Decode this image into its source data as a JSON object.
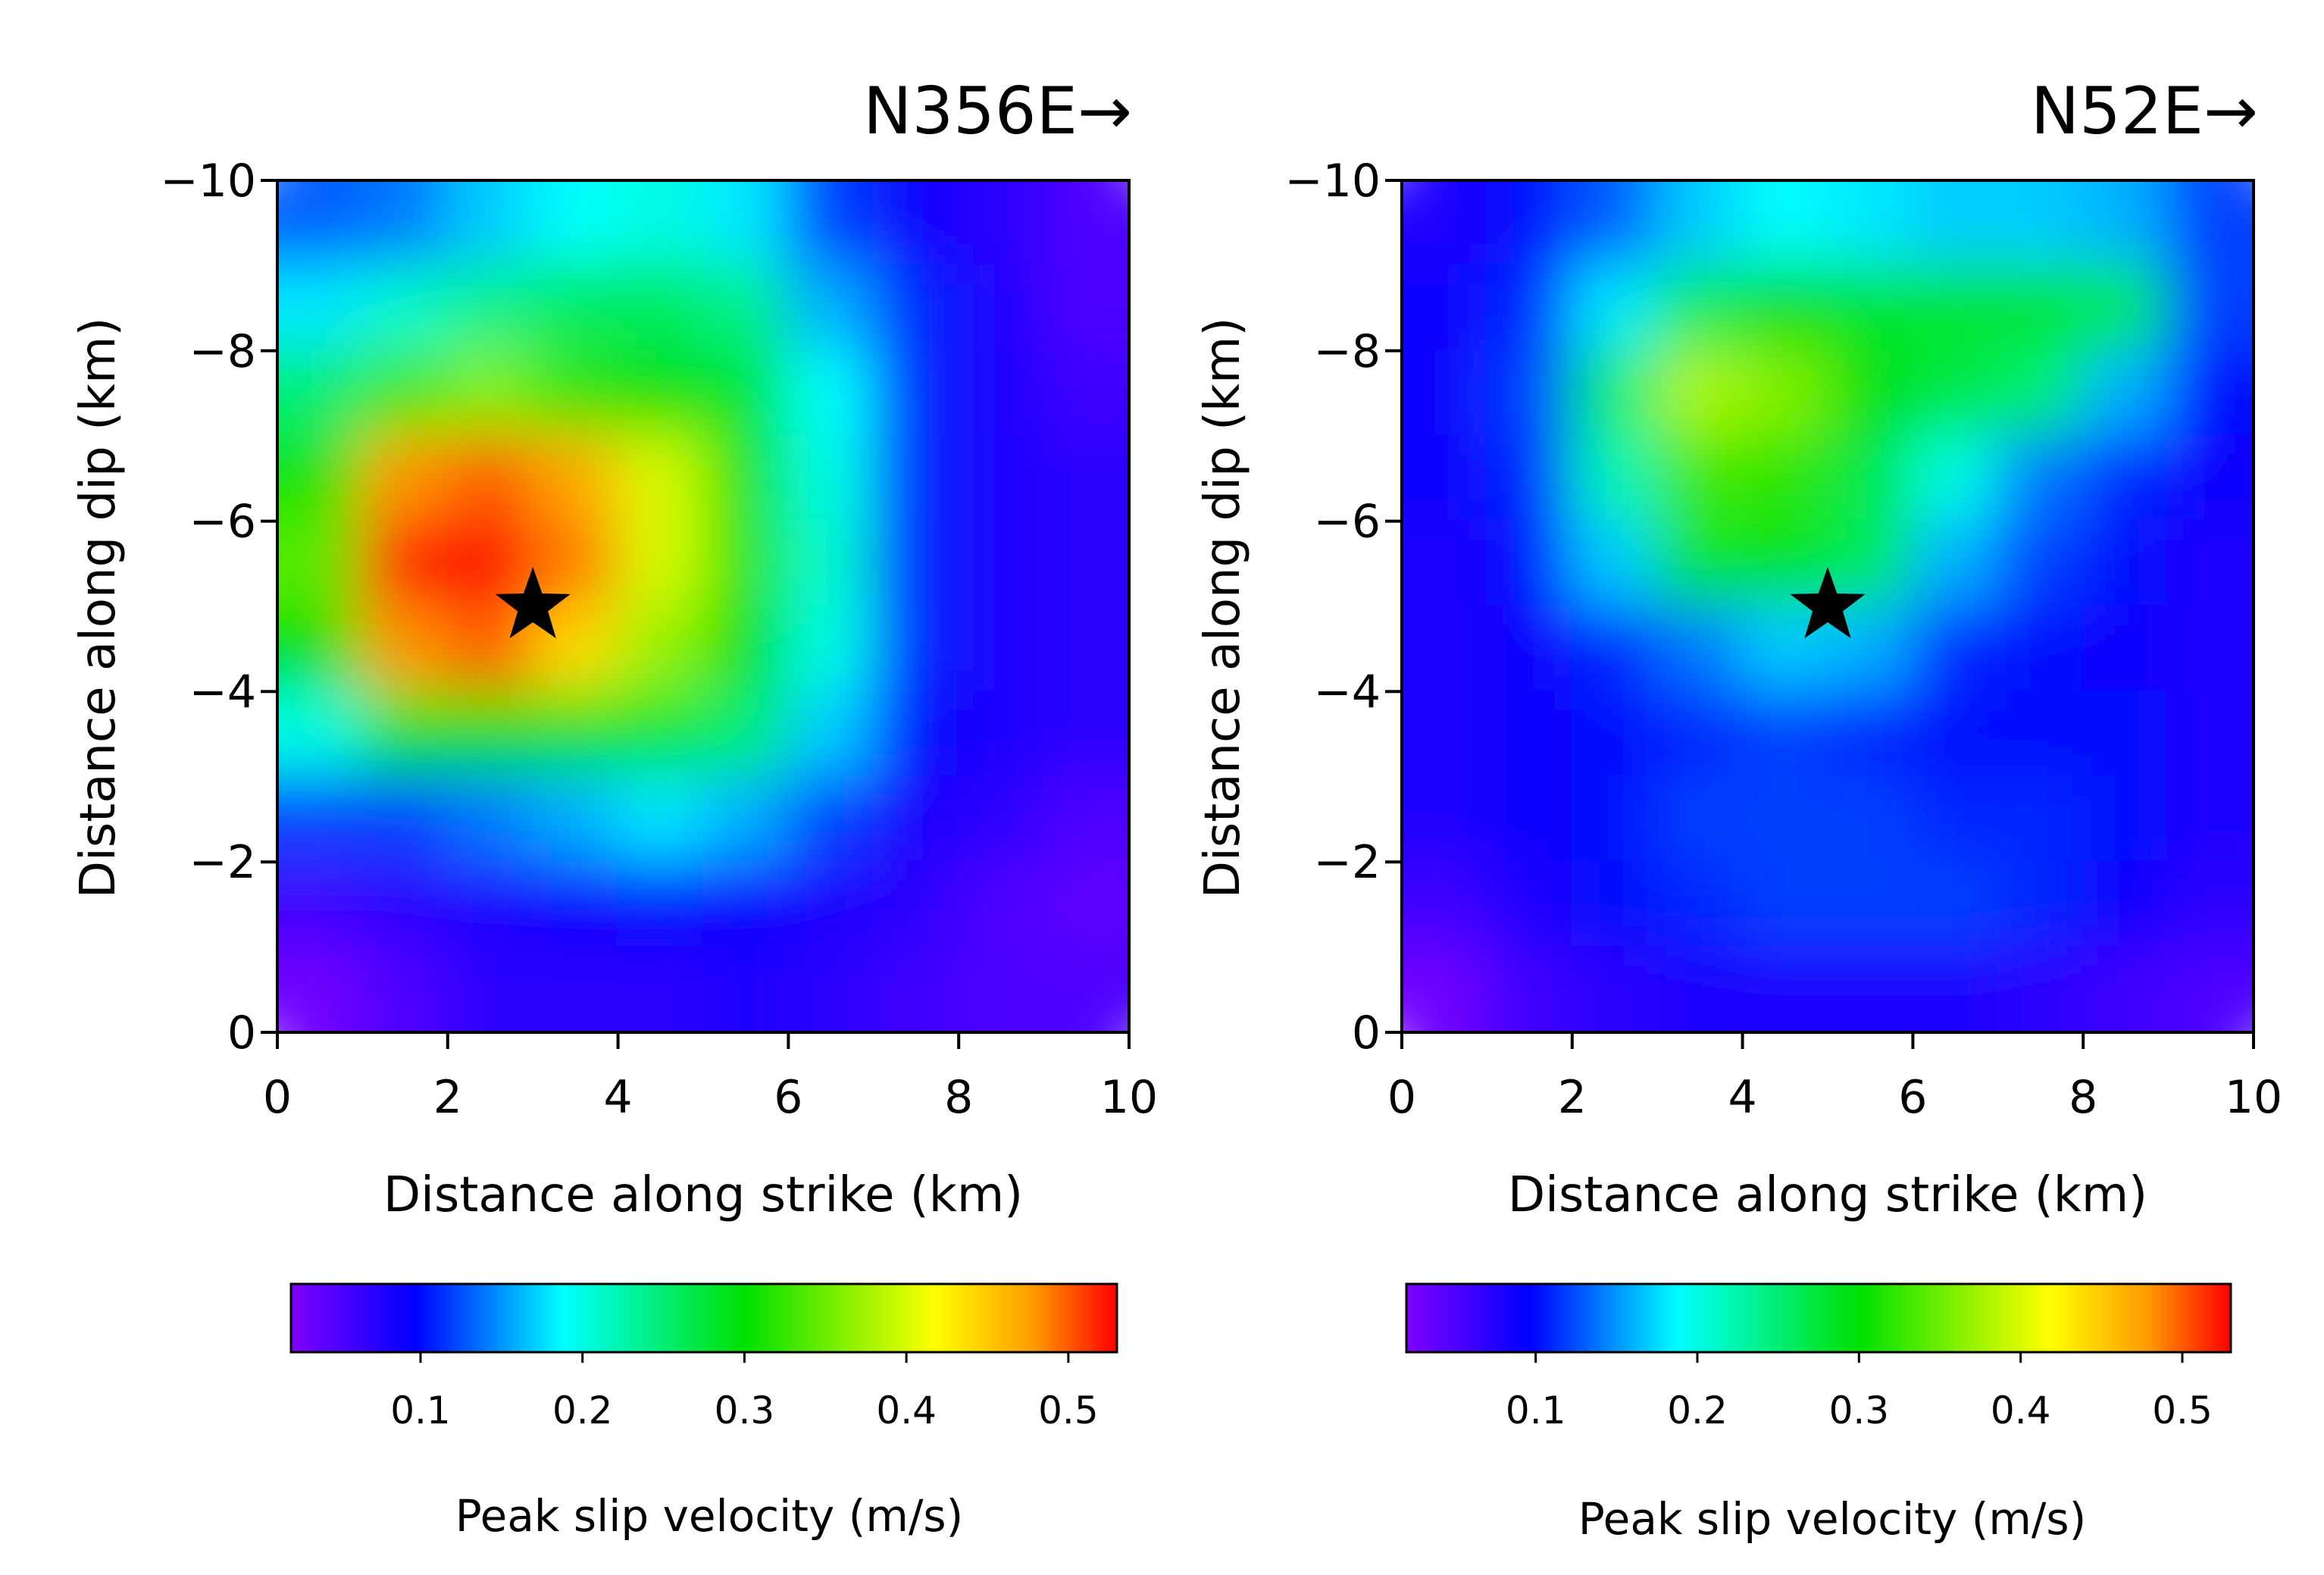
{
  "figure": {
    "panels": [
      {
        "title": "N356E→"
      },
      {
        "title": "N52E→"
      }
    ]
  },
  "chart_data": [
    {
      "type": "heatmap",
      "title": "N356E→",
      "xlabel": "Distance along strike (km)",
      "ylabel": "Distance along dip (km)",
      "xlim": [
        0,
        10
      ],
      "ylim": [
        0,
        -10
      ],
      "x_ticks": [
        "0",
        "2",
        "4",
        "6",
        "8",
        "10"
      ],
      "y_ticks": [
        "−10",
        "−8",
        "−6",
        "−4",
        "−2",
        "0"
      ],
      "x": [
        0.5,
        1.5,
        2.5,
        3.5,
        4.5,
        5.5,
        6.5,
        7.5,
        8.5,
        9.5
      ],
      "y": [
        -9.5,
        -8.5,
        -7.5,
        -6.5,
        -5.5,
        -4.5,
        -3.5,
        -2.5,
        -1.5,
        -0.5
      ],
      "z": [
        [
          0.13,
          0.14,
          0.17,
          0.19,
          0.2,
          0.18,
          0.12,
          0.09,
          0.07,
          0.05
        ],
        [
          0.18,
          0.21,
          0.24,
          0.26,
          0.26,
          0.24,
          0.16,
          0.11,
          0.08,
          0.05
        ],
        [
          0.25,
          0.33,
          0.36,
          0.32,
          0.3,
          0.28,
          0.19,
          0.11,
          0.08,
          0.06
        ],
        [
          0.31,
          0.48,
          0.5,
          0.47,
          0.4,
          0.31,
          0.2,
          0.11,
          0.08,
          0.07
        ],
        [
          0.34,
          0.52,
          0.53,
          0.49,
          0.4,
          0.32,
          0.21,
          0.11,
          0.08,
          0.07
        ],
        [
          0.3,
          0.48,
          0.5,
          0.44,
          0.37,
          0.3,
          0.2,
          0.11,
          0.08,
          0.07
        ],
        [
          0.2,
          0.29,
          0.3,
          0.29,
          0.28,
          0.25,
          0.17,
          0.1,
          0.08,
          0.07
        ],
        [
          0.12,
          0.12,
          0.14,
          0.16,
          0.18,
          0.16,
          0.12,
          0.08,
          0.07,
          0.05
        ],
        [
          0.06,
          0.07,
          0.08,
          0.09,
          0.1,
          0.09,
          0.08,
          0.07,
          0.05,
          0.04
        ],
        [
          0.03,
          0.05,
          0.07,
          0.07,
          0.07,
          0.08,
          0.07,
          0.06,
          0.05,
          0.05
        ]
      ],
      "hypocenter": {
        "x": 3.0,
        "y": -5.0
      },
      "colorbar": {
        "label": "Peak slip velocity (m/s)",
        "range": [
          0.02,
          0.53
        ],
        "ticks": [
          0.1,
          0.2,
          0.3,
          0.4,
          0.5
        ],
        "tick_labels": [
          "0.1",
          "0.2",
          "0.3",
          "0.4",
          "0.5"
        ]
      }
    },
    {
      "type": "heatmap",
      "title": "N52E→",
      "xlabel": "Distance along strike (km)",
      "ylabel": "Distance along dip (km)",
      "xlim": [
        0,
        10
      ],
      "ylim": [
        0,
        -10
      ],
      "x_ticks": [
        "0",
        "2",
        "4",
        "6",
        "8",
        "10"
      ],
      "y_ticks": [
        "−10",
        "−8",
        "−6",
        "−4",
        "−2",
        "0"
      ],
      "x": [
        0.5,
        1.5,
        2.5,
        3.5,
        4.5,
        5.5,
        6.5,
        7.5,
        8.5,
        9.5
      ],
      "y": [
        -9.5,
        -8.5,
        -7.5,
        -6.5,
        -5.5,
        -4.5,
        -3.5,
        -2.5,
        -1.5,
        -0.5
      ],
      "z": [
        [
          0.08,
          0.1,
          0.13,
          0.17,
          0.19,
          0.18,
          0.17,
          0.17,
          0.16,
          0.12
        ],
        [
          0.09,
          0.11,
          0.18,
          0.26,
          0.3,
          0.28,
          0.28,
          0.28,
          0.26,
          0.12
        ],
        [
          0.09,
          0.12,
          0.25,
          0.38,
          0.36,
          0.3,
          0.27,
          0.25,
          0.16,
          0.1
        ],
        [
          0.09,
          0.11,
          0.22,
          0.33,
          0.32,
          0.27,
          0.2,
          0.14,
          0.11,
          0.09
        ],
        [
          0.08,
          0.1,
          0.17,
          0.28,
          0.29,
          0.26,
          0.16,
          0.12,
          0.1,
          0.08
        ],
        [
          0.08,
          0.09,
          0.11,
          0.14,
          0.17,
          0.16,
          0.11,
          0.1,
          0.09,
          0.08
        ],
        [
          0.08,
          0.09,
          0.1,
          0.11,
          0.12,
          0.11,
          0.1,
          0.1,
          0.1,
          0.08
        ],
        [
          0.08,
          0.09,
          0.1,
          0.12,
          0.12,
          0.12,
          0.11,
          0.11,
          0.1,
          0.08
        ],
        [
          0.06,
          0.08,
          0.1,
          0.11,
          0.12,
          0.12,
          0.12,
          0.11,
          0.09,
          0.07
        ],
        [
          0.03,
          0.06,
          0.07,
          0.08,
          0.08,
          0.08,
          0.08,
          0.07,
          0.06,
          0.05
        ]
      ],
      "hypocenter": {
        "x": 5.0,
        "y": -5.0
      },
      "colorbar": {
        "label": "Peak slip velocity (m/s)",
        "range": [
          0.02,
          0.53
        ],
        "ticks": [
          0.1,
          0.2,
          0.3,
          0.4,
          0.5
        ],
        "tick_labels": [
          "0.1",
          "0.2",
          "0.3",
          "0.4",
          "0.5"
        ]
      }
    }
  ]
}
